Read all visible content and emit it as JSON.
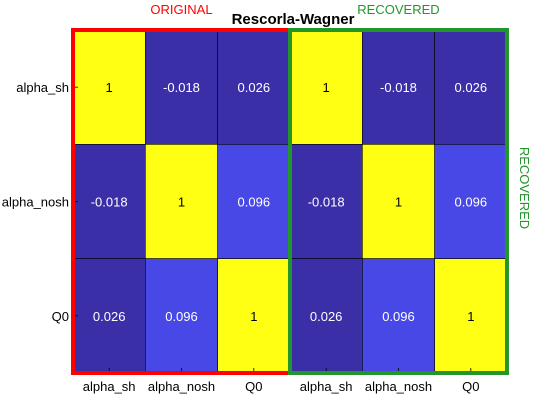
{
  "chart_data": {
    "type": "heatmap",
    "title": "Rescorla-Wagner",
    "row_labels": [
      "alpha_sh",
      "alpha_nosh",
      "Q0"
    ],
    "col_labels": [
      "alpha_sh",
      "alpha_nosh",
      "Q0",
      "alpha_sh",
      "alpha_nosh",
      "Q0"
    ],
    "values": [
      [
        "1",
        "-0.018",
        "0.026",
        "1",
        "-0.018",
        "0.026"
      ],
      [
        "-0.018",
        "1",
        "0.096",
        "-0.018",
        "1",
        "0.096"
      ],
      [
        "0.026",
        "0.096",
        "1",
        "0.026",
        "0.096",
        "1"
      ]
    ],
    "groups": [
      {
        "label": "ORIGINAL",
        "columns": [
          0,
          1,
          2
        ],
        "color": "#ff0000"
      },
      {
        "label": "RECOVERED",
        "columns": [
          3,
          4,
          5
        ],
        "color": "#22962a"
      }
    ],
    "side_label": "RECOVERED",
    "side_label_color": "#22962a",
    "colors": {
      "high": "#ffff14",
      "mid": "#4848e6",
      "low": "#3b2fa8",
      "cell_text": "#000000",
      "cell_text_dark_bg": "#ffffff",
      "grid": "#000000"
    }
  }
}
